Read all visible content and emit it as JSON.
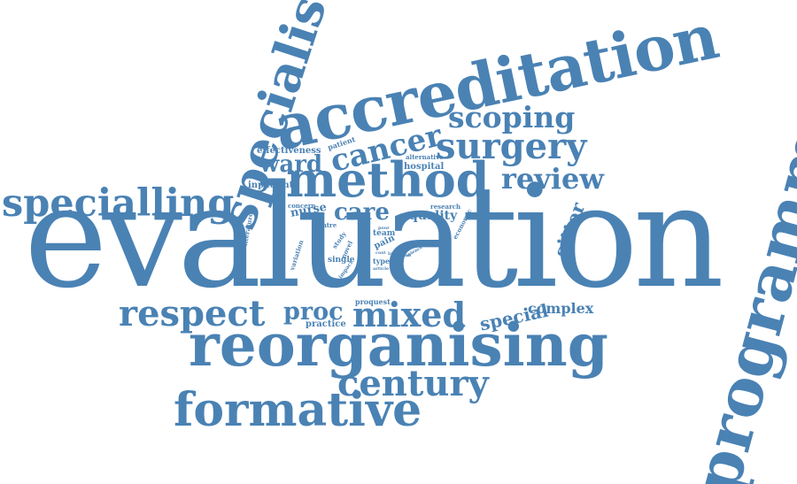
{
  "cloud": {
    "color": "#4a82b4",
    "words": {
      "evaluation": "evaluation",
      "accreditation": "accreditation",
      "programme": "programme",
      "reorganising": "reorganising",
      "specialist": "specialist",
      "method": "method",
      "specialling": "specialling",
      "formative": "formative",
      "century": "century",
      "surgery": "surgery",
      "cancer": "cancer",
      "scoping": "scoping",
      "respect": "respect",
      "mixed": "mixed",
      "review": "review",
      "ward": "ward",
      "care": "care",
      "proc": "proc",
      "sitter": "sitter",
      "special": "special",
      "complex": "complex",
      "quality": "quality",
      "nurse": "nurse",
      "effectiveness": "effectiveness",
      "inpatient": "inpatient",
      "hospital": "hospital",
      "patient": "patient",
      "alternative": "alternative",
      "research": "research",
      "concern": "concern",
      "economic": "economic",
      "pain": "pain",
      "team": "team",
      "centre": "centre",
      "literature": "literature",
      "variation": "variation",
      "study": "study",
      "novel": "novel",
      "single": "single",
      "type": "type",
      "pilot": "pilot",
      "proquest": "proquest",
      "practice": "practice",
      "impact": "impact",
      "article": "article",
      "lack": "lack",
      "entail": "entail",
      "science": "science",
      "cost": "cost",
      "poor": "poor"
    }
  }
}
